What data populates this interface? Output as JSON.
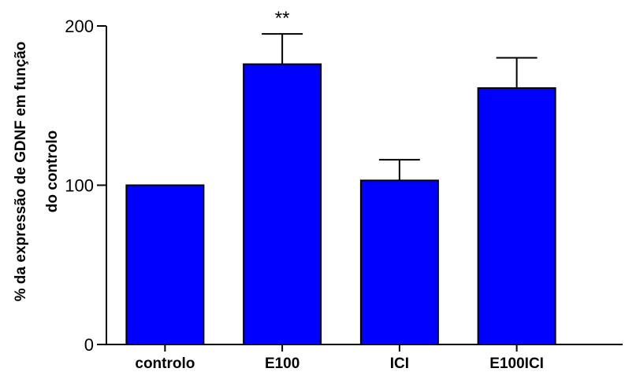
{
  "chart_data": {
    "type": "bar",
    "categories": [
      "controlo",
      "E100",
      "ICI",
      "E100ICI"
    ],
    "values": [
      100,
      176,
      103,
      161
    ],
    "errors": [
      0,
      19,
      13,
      19
    ],
    "annotations": [
      "",
      "**",
      "",
      ""
    ],
    "ylabel_lines": [
      "% da expressão de GDNF em função",
      "do controlo"
    ],
    "ylim": [
      0,
      200
    ],
    "yticks": [
      0,
      100,
      200
    ],
    "grid": false,
    "bar_color": "#0000ff",
    "edge_color": "#000000"
  }
}
